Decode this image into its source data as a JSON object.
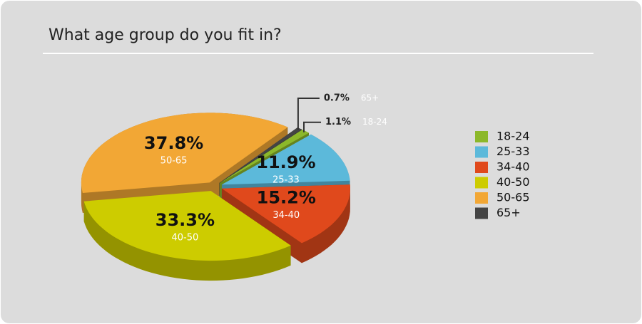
{
  "chart_data": {
    "type": "pie",
    "title": "What age group do you fit in?",
    "categories": [
      "18-24",
      "25-33",
      "34-40",
      "40-50",
      "50-65",
      "65+"
    ],
    "values": [
      1.1,
      11.9,
      15.2,
      33.3,
      37.8,
      0.7
    ],
    "value_labels": [
      "1.1%",
      "11.9%",
      "15.2%",
      "33.3%",
      "37.8%",
      "0.7%"
    ],
    "colors": [
      "#8cb82a",
      "#5cb9da",
      "#e0491c",
      "#cdcc00",
      "#f2a735",
      "#444444"
    ],
    "legend": "right"
  }
}
